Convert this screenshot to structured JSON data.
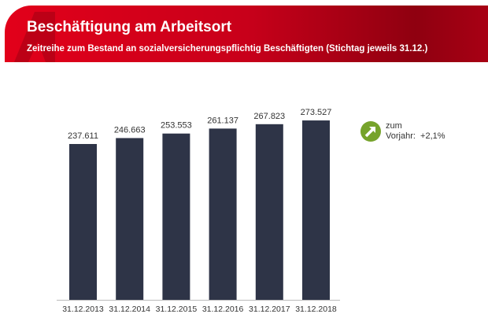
{
  "header": {
    "title": "Beschäftigung am Arbeitsort",
    "subtitle": "Zeitreihe zum Bestand an sozialversicherungspflichtig Beschäftigten (Stichtag jeweils 31.12.)"
  },
  "note": {
    "line1": "zum",
    "line2": "Vorjahr:  +2,1%",
    "icon": "arrow-up-right-icon",
    "icon_color": "#76a32b"
  },
  "chart_data": {
    "type": "bar",
    "title": "Beschäftigung am Arbeitsort",
    "categories": [
      "31.12.2013",
      "31.12.2014",
      "31.12.2015",
      "31.12.2016",
      "31.12.2017",
      "31.12.2018"
    ],
    "values": [
      237611,
      246663,
      253553,
      261137,
      267823,
      273527
    ],
    "labels": [
      "237.611",
      "246.663",
      "253.553",
      "261.137",
      "267.823",
      "273.527"
    ],
    "ylim": [
      0,
      300000
    ],
    "bar_color": "#2e3447",
    "grid": false
  }
}
